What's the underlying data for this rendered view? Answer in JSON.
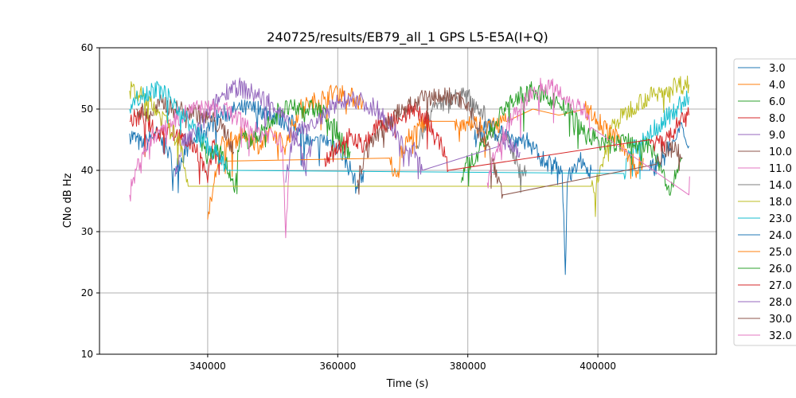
{
  "chart_data": {
    "type": "line",
    "title": "240725/results/EB79_all_1 GPS L5-E5A(I+Q)",
    "xlabel": "Time (s)",
    "ylabel": "CNo dB Hz",
    "xlim": [
      323364,
      418226
    ],
    "ylim": [
      10,
      60
    ],
    "xticks": [
      340000,
      360000,
      380000,
      400000
    ],
    "yticks": [
      10,
      20,
      30,
      40,
      50,
      60
    ],
    "grid": true,
    "legend_position": "outside-right",
    "x_units_note": "series x values in thousands of seconds",
    "series": [
      {
        "name": "3.0",
        "color": "#1f77b4",
        "points": [
          [
            328,
            46
          ],
          [
            330,
            44
          ],
          [
            332,
            46
          ],
          [
            334,
            43
          ],
          [
            335,
            40
          ],
          [
            337,
            44
          ],
          [
            340,
            47
          ],
          [
            342,
            49
          ],
          [
            345,
            50
          ],
          [
            348,
            50
          ],
          [
            350,
            49
          ],
          [
            352,
            48
          ],
          [
            354,
            47
          ],
          [
            356,
            44
          ],
          [
            358,
            45
          ],
          [
            360,
            44
          ],
          [
            362,
            40
          ],
          [
            363,
            37
          ],
          [
            364,
            40
          ]
        ]
      },
      {
        "name": "4.0",
        "color": "#ff7f0e",
        "points": [
          [
            340,
            32
          ],
          [
            341,
            38
          ],
          [
            342,
            44
          ],
          [
            344,
            45
          ],
          [
            346,
            46
          ],
          [
            348,
            44
          ],
          [
            350,
            46
          ],
          [
            352,
            44
          ],
          [
            354,
            50
          ],
          [
            356,
            51
          ],
          [
            358,
            52
          ],
          [
            360,
            53
          ],
          [
            362,
            52
          ],
          [
            364,
            51
          ]
        ]
      },
      {
        "name": "6.0",
        "color": "#2ca02c",
        "points": [
          [
            339,
            45
          ],
          [
            340,
            42
          ],
          [
            342,
            44
          ],
          [
            344,
            37
          ],
          [
            345,
            45
          ],
          [
            347,
            45
          ],
          [
            349,
            47
          ],
          [
            351,
            50
          ],
          [
            353,
            50
          ],
          [
            355,
            50
          ],
          [
            357,
            50
          ],
          [
            359,
            48
          ],
          [
            361,
            44
          ],
          [
            362,
            43
          ]
        ]
      },
      {
        "name": "8.0",
        "color": "#d62728",
        "points": [
          [
            328,
            48
          ],
          [
            330,
            49
          ],
          [
            332,
            46
          ],
          [
            334,
            47
          ],
          [
            336,
            45
          ],
          [
            338,
            44
          ],
          [
            339,
            42
          ],
          [
            340,
            38
          ],
          [
            341,
            45
          ],
          [
            342,
            41
          ]
        ]
      },
      {
        "name": "9.0",
        "color": "#9467bd",
        "points": [
          [
            335,
            39
          ],
          [
            336,
            44
          ],
          [
            338,
            46
          ],
          [
            340,
            49
          ],
          [
            342,
            52
          ],
          [
            344,
            54
          ],
          [
            346,
            53
          ],
          [
            348,
            52
          ],
          [
            350,
            51
          ],
          [
            352,
            48
          ],
          [
            354,
            44
          ],
          [
            355,
            40
          ],
          [
            356,
            45
          ]
        ]
      },
      {
        "name": "10.0",
        "color": "#8c564b",
        "points": [
          [
            329,
            50
          ],
          [
            331,
            49
          ],
          [
            333,
            51
          ],
          [
            335,
            50
          ],
          [
            337,
            50
          ],
          [
            339,
            49
          ],
          [
            341,
            48
          ],
          [
            343,
            46
          ],
          [
            344,
            43
          ]
        ]
      },
      {
        "name": "11.0",
        "color": "#e377c2",
        "points": [
          [
            328,
            36
          ],
          [
            329,
            40
          ],
          [
            330,
            43
          ],
          [
            332,
            46
          ],
          [
            334,
            48
          ],
          [
            336,
            49
          ],
          [
            338,
            50
          ],
          [
            340,
            50
          ],
          [
            342,
            50
          ],
          [
            344,
            49
          ],
          [
            346,
            47
          ],
          [
            348,
            46
          ],
          [
            350,
            46
          ],
          [
            351.5,
            44
          ],
          [
            352,
            29
          ],
          [
            352.5,
            40
          ]
        ]
      },
      {
        "name": "14.0",
        "color": "#7f7f7f",
        "points": [
          [
            372,
            44
          ],
          [
            374,
            49
          ],
          [
            376,
            51
          ],
          [
            378,
            52
          ],
          [
            380,
            52
          ],
          [
            382,
            50
          ],
          [
            384,
            46
          ],
          [
            386,
            45
          ],
          [
            388,
            41
          ],
          [
            389,
            40
          ]
        ]
      },
      {
        "name": "18.0",
        "color": "#bcbd22",
        "points": [
          [
            328,
            53
          ],
          [
            330,
            52
          ],
          [
            332,
            50
          ],
          [
            334,
            47
          ],
          [
            336,
            44
          ],
          [
            337,
            37.4
          ],
          [
            399,
            37.4
          ],
          [
            400,
            38
          ],
          [
            401,
            42
          ],
          [
            402,
            47
          ],
          [
            404,
            49
          ],
          [
            406,
            51
          ],
          [
            408,
            52
          ],
          [
            410,
            53
          ],
          [
            412,
            54
          ],
          [
            414,
            54
          ]
        ]
      },
      {
        "name": "23.0",
        "color": "#17becf",
        "points": [
          [
            328,
            50
          ],
          [
            329,
            52
          ],
          [
            331,
            53
          ],
          [
            333,
            53
          ],
          [
            335,
            51
          ],
          [
            337,
            48
          ],
          [
            339,
            45
          ],
          [
            341,
            43
          ],
          [
            343,
            40
          ],
          [
            404,
            39.5
          ],
          [
            404.5,
            42
          ],
          [
            406,
            44
          ],
          [
            408,
            46
          ],
          [
            410,
            48
          ],
          [
            412,
            50
          ],
          [
            414,
            52
          ]
        ]
      },
      {
        "name": "24.0",
        "color": "#1f77b4",
        "points": [
          [
            381,
            45
          ],
          [
            383,
            47
          ],
          [
            385,
            46
          ],
          [
            387,
            45
          ],
          [
            389,
            45
          ],
          [
            391,
            42
          ],
          [
            393,
            41
          ],
          [
            394.5,
            40
          ],
          [
            395,
            23
          ],
          [
            395.3,
            38
          ],
          [
            397,
            42
          ],
          [
            399,
            40
          ],
          [
            408,
            40
          ],
          [
            410,
            42
          ],
          [
            412,
            45
          ],
          [
            413,
            47
          ],
          [
            414,
            44
          ]
        ]
      },
      {
        "name": "25.0",
        "color": "#ff7f0e",
        "points": [
          [
            343,
            41.5
          ],
          [
            368,
            42
          ],
          [
            369,
            39
          ],
          [
            370,
            44
          ],
          [
            372,
            47
          ],
          [
            374,
            48
          ],
          [
            378,
            48
          ],
          [
            380,
            48
          ],
          [
            383,
            47
          ],
          [
            386,
            48
          ],
          [
            390,
            50
          ],
          [
            394,
            49
          ],
          [
            398,
            50
          ],
          [
            400,
            48
          ],
          [
            402,
            46
          ],
          [
            404,
            44
          ],
          [
            406,
            40
          ],
          [
            407,
            42
          ]
        ]
      },
      {
        "name": "26.0",
        "color": "#2ca02c",
        "points": [
          [
            379,
            38
          ],
          [
            380,
            42
          ],
          [
            381,
            41
          ],
          [
            382,
            44
          ],
          [
            384,
            47
          ],
          [
            386,
            51
          ],
          [
            388,
            52
          ],
          [
            390,
            53
          ],
          [
            392,
            52
          ],
          [
            394,
            51
          ],
          [
            396,
            49
          ],
          [
            398,
            46
          ],
          [
            400,
            45
          ],
          [
            402,
            44
          ],
          [
            404,
            45
          ],
          [
            406,
            44
          ],
          [
            408,
            44
          ],
          [
            410,
            40
          ],
          [
            411,
            36
          ],
          [
            413,
            42
          ]
        ]
      },
      {
        "name": "27.0",
        "color": "#d62728",
        "points": [
          [
            358,
            42
          ],
          [
            360,
            43
          ],
          [
            362,
            46
          ],
          [
            364,
            44
          ],
          [
            366,
            47
          ],
          [
            368,
            48
          ],
          [
            370,
            49
          ],
          [
            372,
            50
          ],
          [
            374,
            48
          ],
          [
            375,
            45
          ],
          [
            376,
            44
          ],
          [
            377,
            40
          ],
          [
            408,
            45
          ],
          [
            410,
            44
          ],
          [
            412,
            47
          ],
          [
            414,
            49
          ]
        ]
      },
      {
        "name": "28.0",
        "color": "#9467bd",
        "points": [
          [
            352,
            38
          ],
          [
            353,
            45
          ],
          [
            355,
            47
          ],
          [
            357,
            48
          ],
          [
            360,
            51
          ],
          [
            362,
            52
          ],
          [
            364,
            51
          ],
          [
            366,
            50
          ],
          [
            368,
            48
          ],
          [
            370,
            44
          ],
          [
            372,
            43
          ],
          [
            373,
            40
          ],
          [
            385,
            44
          ],
          [
            386,
            45
          ],
          [
            388,
            43
          ]
        ]
      },
      {
        "name": "30.0",
        "color": "#8c564b",
        "points": [
          [
            363,
            38
          ],
          [
            364,
            42
          ],
          [
            366,
            46
          ],
          [
            368,
            48
          ],
          [
            370,
            50
          ],
          [
            372,
            51
          ],
          [
            374,
            52
          ],
          [
            376,
            52
          ],
          [
            378,
            52
          ],
          [
            380,
            51
          ],
          [
            381,
            48
          ],
          [
            383,
            44
          ],
          [
            385,
            38
          ],
          [
            385.5,
            36
          ],
          [
            409,
            41
          ],
          [
            410,
            43
          ],
          [
            412,
            44
          ],
          [
            413,
            42
          ]
        ]
      },
      {
        "name": "32.0",
        "color": "#e377c2",
        "points": [
          [
            383,
            38
          ],
          [
            384,
            42
          ],
          [
            386,
            47
          ],
          [
            388,
            50
          ],
          [
            390,
            53
          ],
          [
            392,
            54
          ],
          [
            394,
            53
          ],
          [
            396,
            51
          ],
          [
            398,
            50
          ],
          [
            399,
            47
          ],
          [
            414,
            36
          ],
          [
            414.1,
            39
          ]
        ]
      }
    ]
  }
}
